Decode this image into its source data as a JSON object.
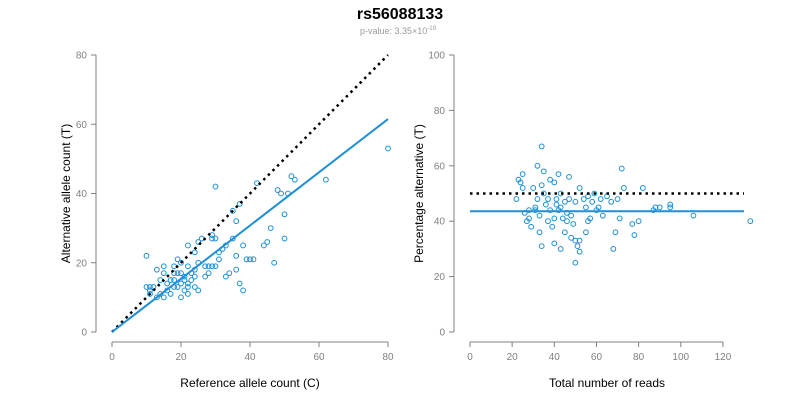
{
  "title": "rs56088133",
  "subtitle": {
    "prefix": "p-value: 3.35×10",
    "exponent": "-19"
  },
  "colors": {
    "points": "#1f8fd6",
    "fit": "#1f8fd6",
    "reference": "#000000"
  },
  "chart_data": [
    {
      "type": "scatter",
      "xlabel": "Reference allele count (C)",
      "ylabel": "Alternative allele count (T)",
      "xlim": [
        0,
        80
      ],
      "ylim": [
        0,
        80
      ],
      "xticks": [
        0,
        20,
        40,
        60,
        80
      ],
      "yticks": [
        0,
        20,
        40,
        60,
        80
      ],
      "grid": false,
      "reference_line": {
        "style": "dotted",
        "from": [
          0,
          0
        ],
        "to": [
          80,
          80
        ]
      },
      "fit_line": {
        "style": "solid",
        "from": [
          0,
          0
        ],
        "to": [
          80,
          61.5
        ]
      },
      "points": [
        [
          10,
          22
        ],
        [
          10,
          13
        ],
        [
          11,
          13
        ],
        [
          12,
          13
        ],
        [
          11,
          11
        ],
        [
          13,
          10
        ],
        [
          13,
          18
        ],
        [
          14,
          11
        ],
        [
          14,
          15
        ],
        [
          15,
          17
        ],
        [
          15,
          19
        ],
        [
          15,
          10
        ],
        [
          16,
          14
        ],
        [
          16,
          12
        ],
        [
          17,
          11
        ],
        [
          17,
          15
        ],
        [
          18,
          15
        ],
        [
          18,
          13
        ],
        [
          18,
          19
        ],
        [
          18,
          17
        ],
        [
          19,
          21
        ],
        [
          19,
          17
        ],
        [
          20,
          20
        ],
        [
          20,
          17
        ],
        [
          20,
          14
        ],
        [
          21,
          15
        ],
        [
          21,
          12
        ],
        [
          21,
          16
        ],
        [
          22,
          13
        ],
        [
          22,
          14
        ],
        [
          22,
          11
        ],
        [
          22,
          19
        ],
        [
          23,
          15
        ],
        [
          23,
          17
        ],
        [
          24,
          18
        ],
        [
          24,
          16
        ],
        [
          24,
          13
        ],
        [
          25,
          20
        ],
        [
          25,
          26
        ],
        [
          25,
          12
        ],
        [
          26,
          27
        ],
        [
          27,
          19
        ],
        [
          27,
          16
        ],
        [
          28,
          19
        ],
        [
          28,
          17
        ],
        [
          29,
          28
        ],
        [
          29,
          27
        ],
        [
          29,
          19
        ],
        [
          30,
          27
        ],
        [
          30,
          19
        ],
        [
          30,
          42
        ],
        [
          31,
          21
        ],
        [
          31,
          23
        ],
        [
          32,
          24
        ],
        [
          33,
          16
        ],
        [
          33,
          25
        ],
        [
          34,
          17
        ],
        [
          35,
          27
        ],
        [
          35,
          35
        ],
        [
          36,
          22
        ],
        [
          36,
          18
        ],
        [
          36,
          32
        ],
        [
          37,
          37
        ],
        [
          37,
          14
        ],
        [
          38,
          12
        ],
        [
          38,
          25
        ],
        [
          39,
          21
        ],
        [
          40,
          21
        ],
        [
          41,
          21
        ],
        [
          42,
          43
        ],
        [
          44,
          25
        ],
        [
          45,
          26
        ],
        [
          46,
          30
        ],
        [
          47,
          20
        ],
        [
          48,
          41
        ],
        [
          49,
          40
        ],
        [
          50,
          27
        ],
        [
          50,
          34
        ],
        [
          51,
          40
        ],
        [
          52,
          45
        ],
        [
          53,
          44
        ],
        [
          62,
          44
        ],
        [
          80,
          53
        ],
        [
          11,
          12
        ],
        [
          20,
          10
        ],
        [
          22,
          25
        ],
        [
          24,
          23
        ],
        [
          19,
          13
        ]
      ]
    },
    {
      "type": "scatter",
      "xlabel": "Total number of reads",
      "ylabel": "Percentage alternative (T)",
      "xlim": [
        0,
        130
      ],
      "ylim": [
        0,
        100
      ],
      "xticks": [
        0,
        20,
        40,
        60,
        80,
        100,
        120
      ],
      "yticks": [
        0,
        20,
        40,
        60,
        80,
        100
      ],
      "grid": false,
      "reference_line": {
        "style": "dotted",
        "y": 50
      },
      "fit_line": {
        "style": "solid",
        "y": 43.6
      },
      "points": [
        [
          22,
          48
        ],
        [
          23,
          55
        ],
        [
          24,
          54
        ],
        [
          25,
          57
        ],
        [
          25,
          52
        ],
        [
          26,
          43
        ],
        [
          27,
          40
        ],
        [
          28,
          44
        ],
        [
          28,
          41
        ],
        [
          29,
          38
        ],
        [
          30,
          52
        ],
        [
          31,
          45
        ],
        [
          31,
          44
        ],
        [
          32,
          60
        ],
        [
          32,
          48
        ],
        [
          33,
          42
        ],
        [
          33,
          36
        ],
        [
          34,
          31
        ],
        [
          34,
          53
        ],
        [
          34,
          67
        ],
        [
          35,
          58
        ],
        [
          35,
          50
        ],
        [
          36,
          46
        ],
        [
          37,
          48
        ],
        [
          37,
          40
        ],
        [
          38,
          55
        ],
        [
          38,
          44
        ],
        [
          39,
          38
        ],
        [
          40,
          32
        ],
        [
          40,
          41
        ],
        [
          40,
          54
        ],
        [
          41,
          46
        ],
        [
          41,
          48
        ],
        [
          42,
          57
        ],
        [
          42,
          44
        ],
        [
          43,
          45
        ],
        [
          43,
          50
        ],
        [
          43,
          30
        ],
        [
          44,
          41
        ],
        [
          45,
          36
        ],
        [
          45,
          47
        ],
        [
          46,
          43
        ],
        [
          46,
          40
        ],
        [
          47,
          56
        ],
        [
          47,
          48
        ],
        [
          48,
          42
        ],
        [
          48,
          34
        ],
        [
          49,
          39
        ],
        [
          50,
          47
        ],
        [
          50,
          33
        ],
        [
          50,
          25
        ],
        [
          51,
          31
        ],
        [
          52,
          29
        ],
        [
          52,
          33
        ],
        [
          52,
          52
        ],
        [
          54,
          48
        ],
        [
          55,
          45
        ],
        [
          55,
          36
        ],
        [
          56,
          40
        ],
        [
          56,
          49
        ],
        [
          57,
          41
        ],
        [
          58,
          47
        ],
        [
          59,
          50
        ],
        [
          60,
          44
        ],
        [
          61,
          45
        ],
        [
          62,
          48
        ],
        [
          63,
          42
        ],
        [
          65,
          49
        ],
        [
          67,
          47
        ],
        [
          68,
          30
        ],
        [
          69,
          36
        ],
        [
          70,
          48
        ],
        [
          71,
          41
        ],
        [
          72,
          59
        ],
        [
          73,
          52
        ],
        [
          77,
          39
        ],
        [
          78,
          35
        ],
        [
          80,
          40
        ],
        [
          82,
          52
        ],
        [
          87,
          44
        ],
        [
          88,
          45
        ],
        [
          90,
          45
        ],
        [
          95,
          46
        ],
        [
          95,
          45
        ],
        [
          106,
          42
        ],
        [
          133,
          40
        ]
      ]
    }
  ]
}
